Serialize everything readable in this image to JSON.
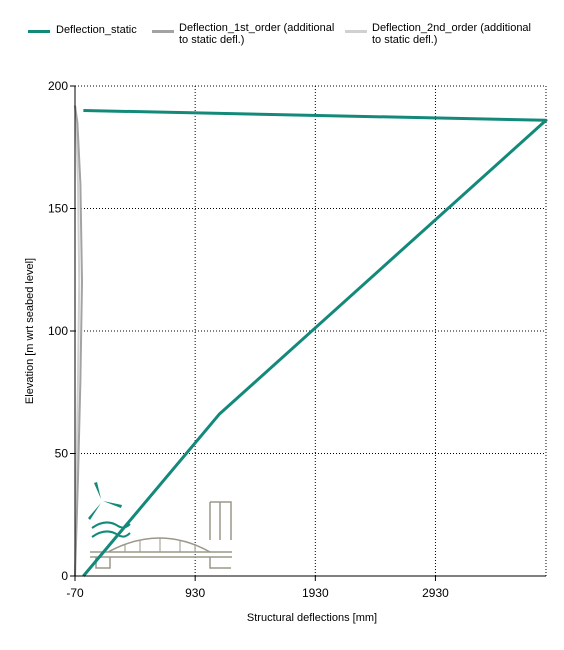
{
  "legend": {
    "items": [
      {
        "label_line1": "Deflection_static",
        "label_line2": "",
        "color": "#13897a"
      },
      {
        "label_line1": "Deflection_1st_order (additional",
        "label_line2": "to static defl.)",
        "color": "#a3a3a3"
      },
      {
        "label_line1": "Deflection_2nd_order (additional",
        "label_line2": "to static defl.)",
        "color": "#d0d0d0"
      }
    ]
  },
  "logo": {
    "icon": "wind-turbine-bridge-logo",
    "accent": "#13897a",
    "line": "#9b978a"
  },
  "chart_data": {
    "type": "line",
    "xlabel": "Structural deflections [mm]",
    "ylabel": "Elevation [m wrt seabed level]",
    "xlim": [
      -70,
      3850
    ],
    "ylim": [
      0,
      200
    ],
    "xticks": [
      -70,
      930,
      1930,
      2930
    ],
    "xtick_labels": [
      "-70",
      "930",
      "1930",
      "2930"
    ],
    "yticks": [
      0,
      50,
      100,
      150,
      200
    ],
    "ytick_labels": [
      "0",
      "50",
      "100",
      "150",
      "200"
    ],
    "grid": true,
    "legend_position": "top",
    "series": [
      {
        "name": "Deflection_static",
        "color": "#13897a",
        "x": [
          0,
          1130,
          3850,
          0
        ],
        "y": [
          0,
          66,
          186,
          190
        ]
      },
      {
        "name": "Deflection_1st_order (additional to static defl.)",
        "color": "#a3a3a3",
        "x": [
          -70,
          -45,
          -25,
          -12,
          -25,
          -50,
          -70
        ],
        "y": [
          0,
          40,
          80,
          120,
          160,
          185,
          192
        ]
      },
      {
        "name": "Deflection_2nd_order (additional to static defl.)",
        "color": "#d0d0d0",
        "x": [
          -70,
          -58,
          -45,
          -35,
          -45,
          -60,
          -70
        ],
        "y": [
          0,
          40,
          80,
          120,
          160,
          185,
          192
        ]
      }
    ]
  }
}
